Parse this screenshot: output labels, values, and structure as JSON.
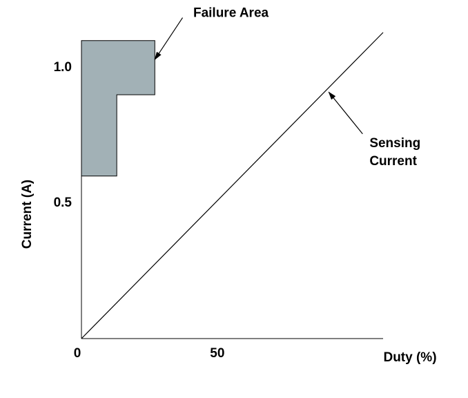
{
  "chart_data": {
    "type": "line",
    "xlabel": "Duty (%)",
    "ylabel": "Current (A)",
    "xlim": [
      0,
      111
    ],
    "ylim": [
      0,
      1.13
    ],
    "xticks": [
      0,
      50
    ],
    "yticks": [
      0.5,
      {
        "value": 1,
        "label": "1.0"
      }
    ],
    "line": {
      "color": "#000000",
      "x": [
        0,
        111
      ],
      "y": [
        0,
        1.13
      ]
    },
    "area": {
      "color": "#a2b1b6",
      "x": [
        0,
        27,
        27,
        13,
        13,
        0
      ],
      "y": [
        1.1,
        1.1,
        0.9,
        0.9,
        0.6,
        0.6
      ]
    },
    "annotations": [
      {
        "lines": [
          "Failure Area"
        ],
        "xy": [
          27,
          1.03
        ],
        "text_xy": [
          55,
          1.2
        ]
      },
      {
        "lines": [
          "Sensing",
          "Current"
        ],
        "xy": [
          91,
          0.91
        ],
        "text_xy": [
          106,
          0.72
        ]
      }
    ]
  }
}
